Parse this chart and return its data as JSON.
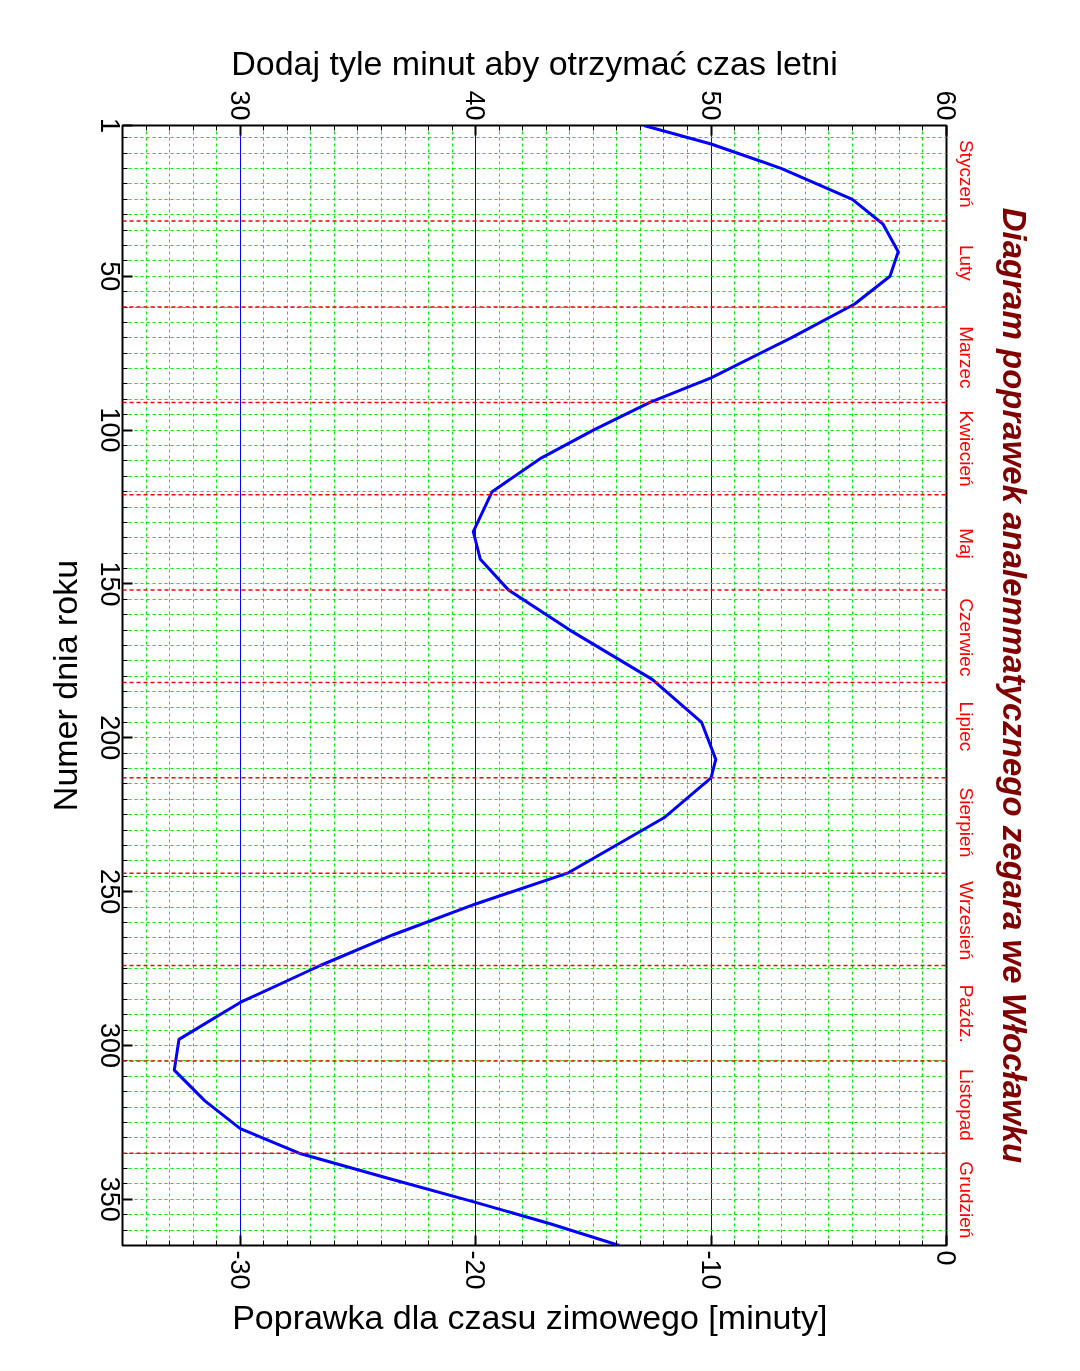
{
  "chart_data": {
    "type": "line",
    "title": "Diagram poprawek analemmatycznego zegara we Włocławku",
    "xlabel": "Poprawka dla czasu zimowego  [minuty]",
    "x2label": "Dodaj tyle minut aby otrzymać czas letni",
    "ylabel": "Numer dnia roku",
    "series": [
      {
        "color": "#0000ff",
        "x": [
          -12.85,
          -10.0,
          -7.0,
          -4.0,
          -2.7,
          -2.05,
          -2.4,
          -3.9,
          -6.6,
          -10.0,
          -12.6,
          -15.0,
          -17.2,
          -19.3,
          -20.1,
          -19.8,
          -18.6,
          -16.0,
          -12.5,
          -10.4,
          -9.8,
          -10.0,
          -12.0,
          -16.1,
          -20.0,
          -23.5,
          -26.6,
          -30.0,
          -32.6,
          -32.8,
          -31.5,
          -30.0,
          -27.5,
          -23.8,
          -20.0,
          -16.8,
          -13.9
        ],
        "values": [
          1,
          7,
          15,
          25,
          33,
          42,
          50,
          59,
          70,
          83,
          91,
          100,
          109,
          120,
          133,
          142,
          152,
          165,
          181,
          195,
          207,
          213,
          226,
          244,
          254,
          264,
          274,
          286,
          298,
          308,
          318,
          327,
          335,
          343,
          351,
          358,
          365
        ]
      }
    ],
    "xlim": [
      -35,
      0
    ],
    "xticks": [
      -30,
      -20,
      -10,
      0
    ],
    "x2lim": [
      25,
      60
    ],
    "x2ticks": [
      30,
      40,
      50,
      60
    ],
    "ylim": [
      365,
      1
    ],
    "yticks": [
      1,
      50,
      100,
      150,
      200,
      250,
      300,
      350
    ],
    "grid": true,
    "marker": "none",
    "line_style": "solid",
    "ref_lines": [
      {
        "axis": "y",
        "value": 32,
        "color": "#ff0000",
        "line_style": "dashed"
      },
      {
        "axis": "y",
        "value": 60,
        "color": "#ff0000",
        "line_style": "dashed"
      },
      {
        "axis": "y",
        "value": 91,
        "color": "#ff0000",
        "line_style": "dashed"
      },
      {
        "axis": "y",
        "value": 121,
        "color": "#ff0000",
        "line_style": "dashed"
      },
      {
        "axis": "y",
        "value": 152,
        "color": "#ff0000",
        "line_style": "dashed"
      },
      {
        "axis": "y",
        "value": 182,
        "color": "#ff0000",
        "line_style": "dashed"
      },
      {
        "axis": "y",
        "value": 213,
        "color": "#ff0000",
        "line_style": "dashed"
      },
      {
        "axis": "y",
        "value": 244,
        "color": "#ff0000",
        "line_style": "dashed"
      },
      {
        "axis": "y",
        "value": 274,
        "color": "#ff0000",
        "line_style": "dashed"
      },
      {
        "axis": "y",
        "value": 305,
        "color": "#ff0000",
        "line_style": "dashed"
      },
      {
        "axis": "y",
        "value": 335,
        "color": "#ff0000",
        "line_style": "dashed"
      }
    ],
    "annotations": [
      "Styczeń",
      "Luty",
      "Marzec",
      "Kwiecień",
      "Maj",
      "Czerwiec",
      "Lipiec",
      "Sierpień",
      "Wrzesień",
      "Paźdz.",
      "Listopad",
      "Grudzień"
    ]
  }
}
